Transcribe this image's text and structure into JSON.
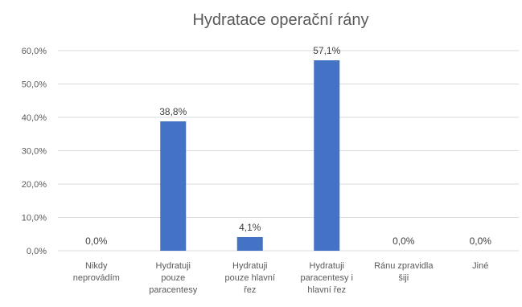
{
  "chart_data": {
    "type": "bar",
    "title": "Hydratace operační rány",
    "xlabel": "",
    "ylabel": "",
    "ylim": [
      0,
      60
    ],
    "yticks": [
      0,
      10,
      20,
      30,
      40,
      50,
      60
    ],
    "ytick_labels": [
      "0,0%",
      "10,0%",
      "20,0%",
      "30,0%",
      "40,0%",
      "50,0%",
      "60,0%"
    ],
    "grid": true,
    "legend": "none",
    "bar_color": "#4472C4",
    "grid_color": "#D9D9D9",
    "categories": [
      [
        "Nikdy",
        "neprovádím"
      ],
      [
        "Hydratuji",
        "pouze",
        "paracentesy"
      ],
      [
        "Hydratuji",
        "pouze hlavní",
        "řez"
      ],
      [
        "Hydratuji",
        "paracentesy i",
        "hlavní řez"
      ],
      [
        "Ránu zpravidla",
        "šiji"
      ],
      [
        "Jiné"
      ]
    ],
    "values": [
      0.0,
      38.8,
      4.1,
      57.1,
      0.0,
      0.0
    ],
    "data_labels": [
      "0,0%",
      "38,8%",
      "4,1%",
      "57,1%",
      "0,0%",
      "0,0%"
    ]
  }
}
